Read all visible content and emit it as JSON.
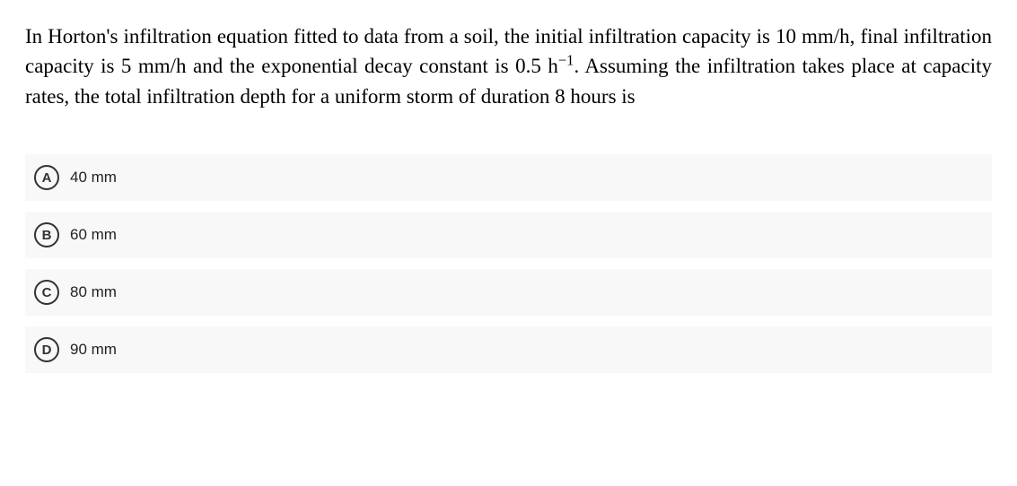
{
  "question": {
    "parts": [
      "In Horton's infiltration equation fitted to data from a soil, the initial infiltration capacity is 10 mm/h, final infiltration capacity is 5 mm/h and the exponential decay constant is 0.5 h",
      "−1",
      ". Assuming the infiltration takes place at capacity rates, the total infiltration depth for a uniform storm of duration 8 hours is"
    ],
    "font_size": 23,
    "color": "#000000"
  },
  "options": [
    {
      "letter": "A",
      "text": "40 mm"
    },
    {
      "letter": "B",
      "text": "60 mm"
    },
    {
      "letter": "C",
      "text": "80 mm"
    },
    {
      "letter": "D",
      "text": "90 mm"
    }
  ],
  "styling": {
    "option_bg": "#f8f8f8",
    "option_letter_border": "#333333",
    "option_letter_color": "#333333",
    "option_text_color": "#222222",
    "background": "#ffffff"
  }
}
